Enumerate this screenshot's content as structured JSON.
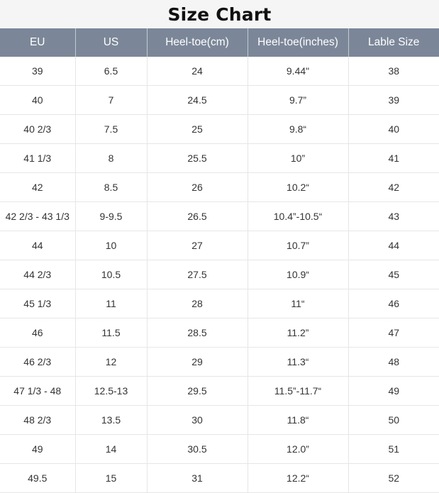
{
  "title": "Size Chart",
  "headers": [
    "EU",
    "US",
    "Heel-toe(cm)",
    "Heel-toe(inches)",
    "Lable Size"
  ],
  "rows": [
    [
      "39",
      "6.5",
      "24",
      "9.44\"",
      "38"
    ],
    [
      "40",
      "7",
      "24.5",
      "9.7”",
      "39"
    ],
    [
      "40 2/3",
      "7.5",
      "25",
      "9.8“",
      "40"
    ],
    [
      "41 1/3",
      "8",
      "25.5",
      "10”",
      "41"
    ],
    [
      "42",
      "8.5",
      "26",
      "10.2“",
      "42"
    ],
    [
      "42 2/3 - 43 1/3",
      "9-9.5",
      "26.5",
      "10.4”-10.5“",
      "43"
    ],
    [
      "44",
      "10",
      "27",
      "10.7”",
      "44"
    ],
    [
      "44 2/3",
      "10.5",
      "27.5",
      "10.9“",
      "45"
    ],
    [
      "45 1/3",
      "11",
      "28",
      "11“",
      "46"
    ],
    [
      "46",
      "11.5",
      "28.5",
      "11.2”",
      "47"
    ],
    [
      "46 2/3",
      "12",
      "29",
      "11.3“",
      "48"
    ],
    [
      "47 1/3 - 48",
      "12.5-13",
      "29.5",
      "11.5”-11.7“",
      "49"
    ],
    [
      "48 2/3",
      "13.5",
      "30",
      "11.8“",
      "50"
    ],
    [
      "49",
      "14",
      "30.5",
      "12.0”",
      "51"
    ],
    [
      "49.5",
      "15",
      "31",
      "12.2“",
      "52"
    ]
  ]
}
